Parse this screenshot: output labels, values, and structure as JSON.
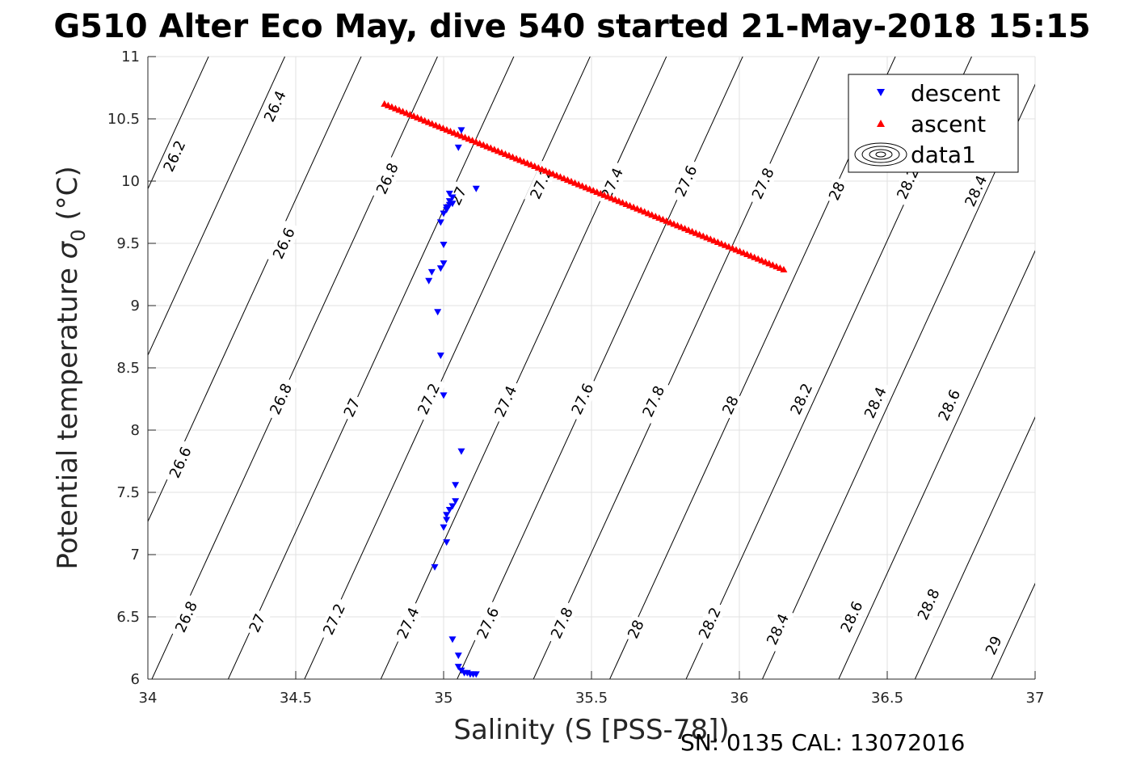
{
  "title": "G510 Alter Eco May, dive 540 started 21-May-2018 15:15",
  "footer": "SN: 0135  CAL: 13072016",
  "chart_data": {
    "type": "scatter",
    "xlabel": "Salinity (S [PSS-78])",
    "ylabel_main": "Potential temperature ",
    "ylabel_sym": "σ",
    "ylabel_sub": "0",
    "ylabel_unit": " (°C)",
    "xlim": [
      34,
      37
    ],
    "ylim": [
      6,
      11
    ],
    "xticks": [
      34,
      34.5,
      35,
      35.5,
      36,
      36.5,
      37
    ],
    "xtick_labels": [
      "34",
      "34.5",
      "35",
      "35.5",
      "36",
      "36.5",
      "37"
    ],
    "yticks": [
      6,
      6.5,
      7,
      7.5,
      8,
      8.5,
      9,
      9.5,
      10,
      10.5,
      11
    ],
    "ytick_labels": [
      "6",
      "6.5",
      "7",
      "7.5",
      "8",
      "8.5",
      "9",
      "9.5",
      "10",
      "10.5",
      "11"
    ],
    "grid": true,
    "legend_position": "top-right",
    "series": [
      {
        "name": "descent",
        "marker": "triangle-down",
        "color": "#0000ff",
        "points": [
          [
            35.06,
            10.41
          ],
          [
            35.05,
            10.27
          ],
          [
            35.11,
            9.94
          ],
          [
            35.02,
            9.9
          ],
          [
            35.03,
            9.87
          ],
          [
            35.02,
            9.84
          ],
          [
            35.03,
            9.82
          ],
          [
            35.02,
            9.81
          ],
          [
            35.01,
            9.79
          ],
          [
            35.01,
            9.77
          ],
          [
            35.0,
            9.74
          ],
          [
            34.99,
            9.67
          ],
          [
            35.0,
            9.49
          ],
          [
            35.0,
            9.34
          ],
          [
            34.99,
            9.3
          ],
          [
            34.96,
            9.27
          ],
          [
            34.95,
            9.2
          ],
          [
            34.98,
            8.95
          ],
          [
            34.99,
            8.6
          ],
          [
            35.0,
            8.28
          ],
          [
            35.06,
            7.83
          ],
          [
            35.04,
            7.56
          ],
          [
            35.04,
            7.43
          ],
          [
            35.03,
            7.39
          ],
          [
            35.02,
            7.36
          ],
          [
            35.01,
            7.32
          ],
          [
            35.01,
            7.28
          ],
          [
            35.0,
            7.22
          ],
          [
            35.01,
            7.1
          ],
          [
            34.97,
            6.9
          ],
          [
            35.03,
            6.32
          ],
          [
            35.05,
            6.19
          ],
          [
            35.05,
            6.1
          ],
          [
            35.06,
            6.07
          ],
          [
            35.07,
            6.05
          ],
          [
            35.08,
            6.05
          ],
          [
            35.09,
            6.04
          ],
          [
            35.1,
            6.04
          ],
          [
            35.11,
            6.04
          ]
        ]
      },
      {
        "name": "ascent",
        "marker": "triangle-up",
        "color": "#ff0000",
        "line_start": [
          34.8,
          10.62
        ],
        "line_end": [
          36.15,
          9.29
        ],
        "num_points": 110
      },
      {
        "name": "data1",
        "marker": "contour",
        "color": "#000000"
      }
    ],
    "contour_levels": [
      "26.2",
      "26.4",
      "26.6",
      "26.8",
      "27",
      "27.2",
      "27.4",
      "27.6",
      "27.8",
      "28",
      "28.2",
      "28.4",
      "28.6",
      "28.8",
      "29"
    ],
    "contour_labels": [
      {
        "text": "26.2",
        "s": 34.09,
        "t": 10.2
      },
      {
        "text": "26.4",
        "s": 34.43,
        "t": 10.6
      },
      {
        "text": "26.8",
        "s": 34.81,
        "t": 10.02
      },
      {
        "text": "27",
        "s": 35.05,
        "t": 9.88
      },
      {
        "text": "27.2",
        "s": 35.33,
        "t": 9.98
      },
      {
        "text": "27.4",
        "s": 35.57,
        "t": 9.98
      },
      {
        "text": "27.6",
        "s": 35.82,
        "t": 10.0
      },
      {
        "text": "27.8",
        "s": 36.08,
        "t": 9.98
      },
      {
        "text": "28",
        "s": 36.33,
        "t": 9.92
      },
      {
        "text": "28.2",
        "s": 36.57,
        "t": 9.98
      },
      {
        "text": "28.4",
        "s": 36.8,
        "t": 9.92
      },
      {
        "text": "26.6",
        "s": 34.46,
        "t": 9.5
      },
      {
        "text": "26.8",
        "s": 34.45,
        "t": 8.25
      },
      {
        "text": "27",
        "s": 34.69,
        "t": 8.18
      },
      {
        "text": "27.2",
        "s": 34.95,
        "t": 8.25
      },
      {
        "text": "27.4",
        "s": 35.21,
        "t": 8.23
      },
      {
        "text": "27.6",
        "s": 35.47,
        "t": 8.25
      },
      {
        "text": "27.8",
        "s": 35.71,
        "t": 8.23
      },
      {
        "text": "28",
        "s": 35.97,
        "t": 8.2
      },
      {
        "text": "28.2",
        "s": 36.21,
        "t": 8.25
      },
      {
        "text": "28.4",
        "s": 36.46,
        "t": 8.22
      },
      {
        "text": "28.6",
        "s": 36.71,
        "t": 8.2
      },
      {
        "text": "26.6",
        "s": 34.11,
        "t": 7.74
      },
      {
        "text": "26.8",
        "s": 34.13,
        "t": 6.5
      },
      {
        "text": "27",
        "s": 34.37,
        "t": 6.45
      },
      {
        "text": "27.2",
        "s": 34.63,
        "t": 6.48
      },
      {
        "text": "27.4",
        "s": 34.88,
        "t": 6.45
      },
      {
        "text": "27.6",
        "s": 35.15,
        "t": 6.45
      },
      {
        "text": "27.8",
        "s": 35.4,
        "t": 6.45
      },
      {
        "text": "28",
        "s": 35.65,
        "t": 6.4
      },
      {
        "text": "28.2",
        "s": 35.9,
        "t": 6.45
      },
      {
        "text": "28.4",
        "s": 36.13,
        "t": 6.4
      },
      {
        "text": "28.6",
        "s": 36.38,
        "t": 6.5
      },
      {
        "text": "28.8",
        "s": 36.64,
        "t": 6.6
      },
      {
        "text": "29",
        "s": 36.86,
        "t": 6.27
      }
    ]
  }
}
